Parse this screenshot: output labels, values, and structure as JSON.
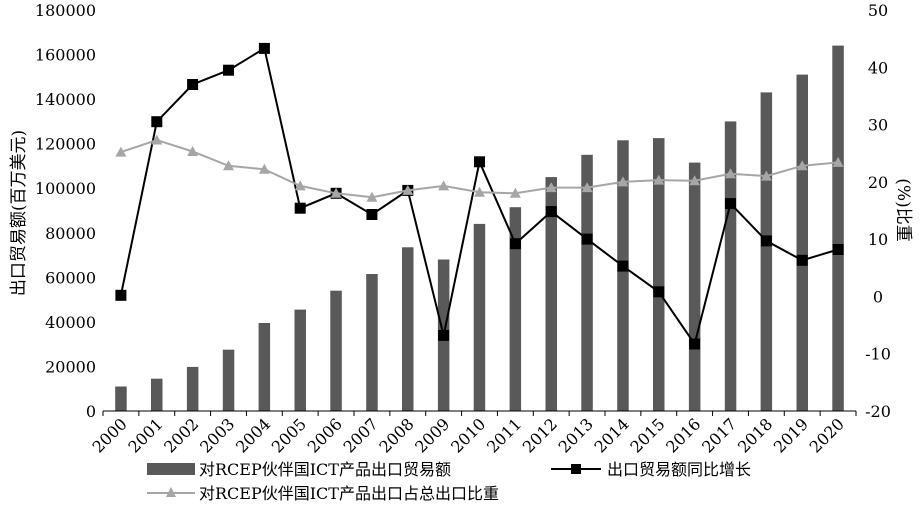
{
  "chart_data": {
    "type": "bar",
    "categories": [
      "2000",
      "2001",
      "2002",
      "2003",
      "2004",
      "2005",
      "2006",
      "2007",
      "2008",
      "2009",
      "2010",
      "2011",
      "2012",
      "2013",
      "2014",
      "2015",
      "2016",
      "2017",
      "2018",
      "2019",
      "2020"
    ],
    "series": [
      {
        "name": "对RCEP伙伴国ICT产品出口贸易额",
        "type": "bar",
        "axis": "left",
        "color": "#595959",
        "values": [
          11000,
          14500,
          19800,
          27500,
          39500,
          45500,
          54000,
          61500,
          73500,
          68000,
          84000,
          91500,
          105000,
          115000,
          121500,
          122500,
          111500,
          130000,
          143000,
          151000,
          164000
        ]
      },
      {
        "name": "出口贸易额同比增长",
        "type": "line",
        "axis": "right",
        "color": "#000000",
        "marker": "square",
        "values": [
          0.2,
          30.5,
          37.0,
          39.5,
          43.3,
          15.4,
          18.0,
          14.3,
          18.5,
          -6.8,
          23.5,
          9.2,
          14.8,
          10.0,
          5.3,
          0.8,
          -8.3,
          16.2,
          9.7,
          6.3,
          8.2
        ]
      },
      {
        "name": "对RCEP伙伴国ICT产品出口占总出口比重",
        "type": "line",
        "axis": "right",
        "color": "#a6a6a6",
        "marker": "triangle",
        "values": [
          25.2,
          27.3,
          25.3,
          22.8,
          22.2,
          19.3,
          18.0,
          17.3,
          18.5,
          19.3,
          18.2,
          18.0,
          19.0,
          19.0,
          20.0,
          20.3,
          20.2,
          21.4,
          21.0,
          22.8,
          23.4
        ]
      }
    ],
    "ylabel": "出口贸易额(百万美元)",
    "y2label": "(%)比重",
    "ylim": [
      0,
      180000
    ],
    "y2lim": [
      -20,
      50
    ],
    "yticks": [
      0,
      20000,
      40000,
      60000,
      80000,
      100000,
      120000,
      140000,
      160000,
      180000
    ],
    "y2ticks": [
      -20,
      -10,
      0,
      10,
      20,
      30,
      40,
      50
    ],
    "grid": false,
    "legend_position": "bottom"
  }
}
